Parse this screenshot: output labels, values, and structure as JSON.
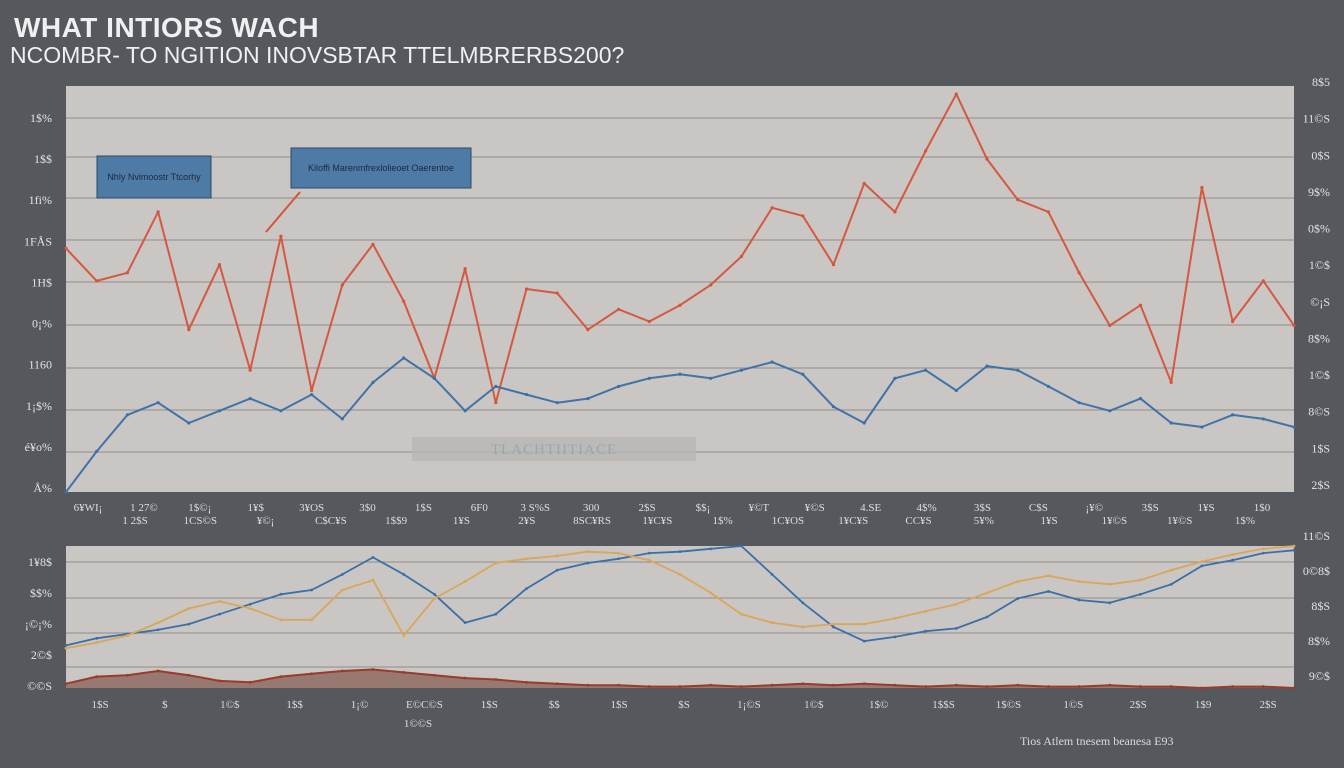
{
  "header": {
    "title": "WHAT INTIORS WACH",
    "subtitle": "NCOMBR- TO NGITION INOVSBTAR TTELMBRERBS200?",
    "footer": "Tios  Atlem  tnesem  beanesa  E93"
  },
  "colors": {
    "background": "#55595e",
    "plot_bg": "#c9c6c3",
    "gridline": "#8e8c8b",
    "red": "#d6523a",
    "blue": "#3a6fa8",
    "light_blue": "#7fb0d6",
    "gold": "#d9a65a",
    "annotation_box": "#4e7aa6"
  },
  "chart_data": [
    {
      "type": "line",
      "title": "",
      "xlabel": "",
      "ylabel": "",
      "ylim": [
        0,
        10
      ],
      "grid": true,
      "left_ticks": [
        "1$%",
        "1$$",
        "1fi%",
        "1FÅS",
        "1H$",
        "0¡%",
        "1160",
        "1¡$%",
        "é¥o%",
        "Å%"
      ],
      "right_ticks": [
        "8$5",
        "11©S",
        "0$S",
        "9$%",
        "0$%",
        "1©$",
        "©¡S",
        "8$%",
        "1©$",
        "8©S",
        "1$S",
        "2$S"
      ],
      "x_ticks_top": [
        "6¥WI¡",
        "1 27©",
        "1$©¡",
        "1¥$",
        "3¥OS",
        "3$0",
        "1$S",
        "6F0",
        "3 S%S",
        "300",
        "2$S",
        "$$¡",
        "¥©T",
        "¥©S",
        "4.SE",
        "4$%",
        "3$S",
        "C$S",
        "¡¥©",
        "3$S",
        "1¥S",
        "1$0"
      ],
      "x_ticks_bottom": [
        "1 2$S",
        "1CS©S",
        "¥©¡",
        "C$C¥S",
        "1$$9",
        "1¥S",
        "2¥S",
        "8SC¥RS",
        "1¥C¥S",
        "1$%",
        "1C¥OS",
        "1¥C¥S",
        "CC¥S",
        "5¥%",
        "1¥S",
        "1¥©S",
        "1¥©S",
        "1$%"
      ],
      "annotations": [
        {
          "text": "Nhly  Nvimoostr Ttcorhy"
        },
        {
          "text": "Kiloffi Marenmfrexlolieoet Oaerentoe"
        },
        {
          "text": "TLACHTIITIACE"
        }
      ],
      "x": [
        0,
        1,
        2,
        3,
        4,
        5,
        6,
        7,
        8,
        9,
        10,
        11,
        12,
        13,
        14,
        15,
        16,
        17,
        18,
        19,
        20,
        21,
        22,
        23,
        24,
        25,
        26,
        27,
        28,
        29,
        30,
        31,
        32,
        33,
        34,
        35,
        36,
        37,
        38,
        39,
        40
      ],
      "series": [
        {
          "values": [
            6.0,
            5.2,
            5.4,
            6.9,
            4.0,
            5.6,
            3.0,
            6.3,
            2.5,
            5.1,
            6.1,
            4.7,
            2.8,
            5.5,
            2.2,
            5.0,
            4.9,
            4.0,
            4.5,
            4.2,
            4.6,
            5.1,
            5.8,
            7.0,
            6.8,
            5.6,
            7.6,
            6.9,
            8.4,
            9.8,
            8.2,
            7.2,
            6.9,
            5.4,
            4.1,
            4.6,
            2.7,
            7.5,
            4.2,
            5.2,
            4.1
          ]
        },
        {
          "values": [
            0.0,
            1.0,
            1.9,
            2.2,
            1.7,
            2.0,
            2.3,
            2.0,
            2.4,
            1.8,
            2.7,
            3.3,
            2.8,
            2.0,
            2.6,
            2.4,
            2.2,
            2.3,
            2.6,
            2.8,
            2.9,
            2.8,
            3.0,
            3.2,
            2.9,
            2.1,
            1.7,
            2.8,
            3.0,
            2.5,
            3.1,
            3.0,
            2.6,
            2.2,
            2.0,
            2.3,
            1.7,
            1.6,
            1.9,
            1.8,
            1.6
          ]
        }
      ]
    },
    {
      "type": "line",
      "title": "",
      "xlabel": "",
      "ylabel": "",
      "ylim": [
        0,
        10
      ],
      "grid": true,
      "left_ticks": [
        "1¥8$",
        "$$%",
        "¡©¡%",
        "2©$",
        "©©S"
      ],
      "right_ticks": [
        "11©S",
        "0©8$",
        "8$S",
        "8$%",
        "9©$"
      ],
      "x_ticks": [
        "1$S",
        "$",
        "1©$",
        "1$$",
        "1¡©",
        "E©C©S",
        "1$S",
        "$$",
        "1$S",
        "$S",
        "1¡©S",
        "1©$",
        "1$©",
        "1$$S",
        "1$©S",
        "1©S",
        "2$S",
        "1$9",
        "2$S"
      ],
      "x_tick_extra": "1©©S",
      "x": [
        0,
        1,
        2,
        3,
        4,
        5,
        6,
        7,
        8,
        9,
        10,
        11,
        12,
        13,
        14,
        15,
        16,
        17,
        18,
        19,
        20,
        21,
        22,
        23,
        24,
        25,
        26,
        27,
        28,
        29,
        30,
        31,
        32,
        33,
        34,
        35,
        36,
        37,
        38,
        39,
        40
      ],
      "series": [
        {
          "values": [
            3.0,
            3.5,
            3.8,
            4.1,
            4.5,
            5.2,
            5.9,
            6.6,
            6.9,
            8.0,
            9.2,
            8.0,
            6.6,
            4.6,
            5.2,
            7.0,
            8.3,
            8.8,
            9.1,
            9.5,
            9.6,
            9.8,
            10.0,
            8.0,
            6.0,
            4.3,
            3.3,
            3.6,
            4.0,
            4.2,
            5.0,
            6.3,
            6.8,
            6.2,
            6.0,
            6.6,
            7.3,
            8.6,
            9.0,
            9.5,
            9.7
          ]
        },
        {
          "values": [
            2.8,
            3.2,
            3.7,
            4.6,
            5.6,
            6.1,
            5.6,
            4.8,
            4.8,
            6.9,
            7.6,
            3.7,
            6.3,
            7.5,
            8.8,
            9.1,
            9.3,
            9.6,
            9.5,
            9.0,
            8.0,
            6.7,
            5.2,
            4.6,
            4.3,
            4.5,
            4.5,
            4.9,
            5.4,
            5.9,
            6.7,
            7.5,
            7.9,
            7.5,
            7.3,
            7.6,
            8.3,
            8.9,
            9.4,
            9.8,
            10.0
          ]
        },
        {
          "values": [
            0.3,
            0.8,
            0.9,
            1.2,
            0.9,
            0.5,
            0.4,
            0.8,
            1.0,
            1.2,
            1.3,
            1.1,
            0.9,
            0.7,
            0.6,
            0.4,
            0.3,
            0.2,
            0.2,
            0.1,
            0.1,
            0.2,
            0.1,
            0.2,
            0.3,
            0.2,
            0.3,
            0.2,
            0.1,
            0.2,
            0.1,
            0.2,
            0.1,
            0.1,
            0.2,
            0.1,
            0.1,
            0.0,
            0.1,
            0.1,
            0.0
          ]
        }
      ]
    }
  ]
}
